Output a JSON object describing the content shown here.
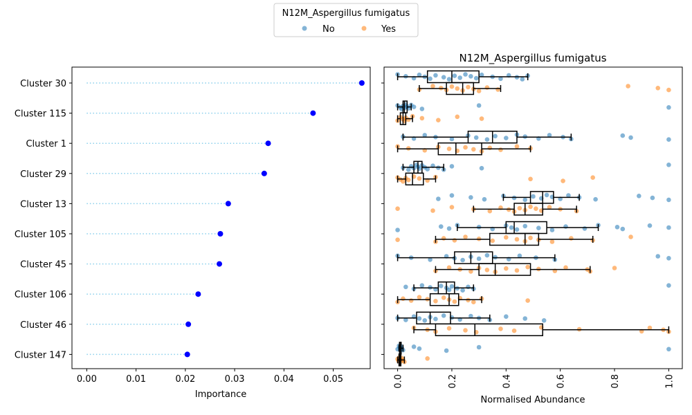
{
  "legend": {
    "title": "N12M_Aspergillus fumigatus",
    "entries": [
      {
        "label": "No",
        "color": "#1f77b4"
      },
      {
        "label": "Yes",
        "color": "#ff7f0e"
      }
    ]
  },
  "chart_data": [
    {
      "type": "lollipop",
      "orientation": "horizontal",
      "xlabel": "Importance",
      "xlim": [
        -0.003,
        0.0575
      ],
      "xticks": [
        "0.00",
        "0.01",
        "0.02",
        "0.03",
        "0.04",
        "0.05"
      ],
      "xtick_values": [
        0,
        0.01,
        0.02,
        0.03,
        0.04,
        0.05
      ],
      "grid": false,
      "marker_color": "#0000ff",
      "stem_color": "#87ceeb",
      "categories": [
        "Cluster 30",
        "Cluster 115",
        "Cluster 1",
        "Cluster 29",
        "Cluster 13",
        "Cluster 105",
        "Cluster 45",
        "Cluster 106",
        "Cluster 46",
        "Cluster 147"
      ],
      "values": [
        0.0558,
        0.0459,
        0.0368,
        0.036,
        0.0287,
        0.0271,
        0.0269,
        0.0226,
        0.0206,
        0.0204
      ]
    },
    {
      "type": "box",
      "orientation": "horizontal",
      "title": "N12M_Aspergillus fumigatus",
      "xlabel": "Normalised Abundance",
      "xlim": [
        -0.05,
        1.05
      ],
      "xticks": [
        "0.0",
        "0.2",
        "0.4",
        "0.6",
        "0.8",
        "1.0"
      ],
      "xtick_values": [
        0,
        0.2,
        0.4,
        0.6,
        0.8,
        1.0
      ],
      "xtick_rotation": 90,
      "grid": false,
      "categories": [
        "Cluster 30",
        "Cluster 115",
        "Cluster 1",
        "Cluster 29",
        "Cluster 13",
        "Cluster 105",
        "Cluster 45",
        "Cluster 106",
        "Cluster 46",
        "Cluster 147"
      ],
      "series": [
        {
          "name": "No",
          "color": "#1f77b4",
          "boxes": [
            [
              0.0,
              0.11,
              0.2,
              0.3,
              0.48
            ],
            [
              0.0,
              0.02,
              0.025,
              0.035,
              0.05
            ],
            [
              0.02,
              0.26,
              0.35,
              0.44,
              0.64
            ],
            [
              0.02,
              0.06,
              0.075,
              0.09,
              0.17
            ],
            [
              0.39,
              0.49,
              0.535,
              0.575,
              0.67
            ],
            [
              0.22,
              0.4,
              0.43,
              0.55,
              0.74
            ],
            [
              0.0,
              0.21,
              0.27,
              0.35,
              0.58
            ],
            [
              0.06,
              0.15,
              0.18,
              0.21,
              0.28
            ],
            [
              0.0,
              0.07,
              0.12,
              0.195,
              0.34
            ],
            [
              0.005,
              0.007,
              0.009,
              0.013,
              0.02
            ]
          ],
          "points": [
            [
              0.0,
              0.03,
              0.06,
              0.08,
              0.1,
              0.12,
              0.14,
              0.17,
              0.19,
              0.21,
              0.23,
              0.25,
              0.27,
              0.29,
              0.31,
              0.35,
              0.38,
              0.41,
              0.44,
              0.46,
              0.48
            ],
            [
              0.0,
              0.01,
              0.015,
              0.02,
              0.025,
              0.03,
              0.035,
              0.04,
              0.05,
              0.06,
              0.09,
              0.3,
              1.0
            ],
            [
              0.02,
              0.06,
              0.1,
              0.14,
              0.2,
              0.26,
              0.29,
              0.33,
              0.36,
              0.4,
              0.44,
              0.47,
              0.52,
              0.56,
              0.61,
              0.64,
              0.83,
              0.86,
              1.0
            ],
            [
              0.02,
              0.04,
              0.05,
              0.06,
              0.07,
              0.075,
              0.08,
              0.09,
              0.1,
              0.11,
              0.13,
              0.15,
              0.17,
              0.2,
              0.31,
              1.0
            ],
            [
              0.15,
              0.2,
              0.27,
              0.32,
              0.39,
              0.43,
              0.47,
              0.5,
              0.53,
              0.55,
              0.57,
              0.6,
              0.63,
              0.67,
              0.73,
              0.89,
              0.94,
              1.0
            ],
            [
              0.0,
              0.16,
              0.19,
              0.22,
              0.3,
              0.35,
              0.4,
              0.42,
              0.44,
              0.47,
              0.52,
              0.57,
              0.62,
              0.69,
              0.74,
              0.81,
              0.83,
              0.93,
              1.0
            ],
            [
              0.0,
              0.05,
              0.12,
              0.18,
              0.21,
              0.24,
              0.27,
              0.3,
              0.33,
              0.36,
              0.41,
              0.45,
              0.51,
              0.58,
              0.96,
              1.0
            ],
            [
              0.03,
              0.06,
              0.09,
              0.12,
              0.14,
              0.16,
              0.18,
              0.19,
              0.2,
              0.22,
              0.24,
              0.26,
              0.28,
              1.0
            ],
            [
              0.0,
              0.03,
              0.06,
              0.08,
              0.1,
              0.12,
              0.14,
              0.17,
              0.2,
              0.23,
              0.27,
              0.3,
              0.34,
              0.4,
              0.47,
              0.54
            ],
            [
              0.0,
              0.005,
              0.008,
              0.01,
              0.013,
              0.016,
              0.02,
              0.06,
              0.08,
              0.18,
              0.3,
              1.0
            ]
          ]
        },
        {
          "name": "Yes",
          "color": "#ff7f0e",
          "boxes": [
            [
              0.08,
              0.18,
              0.24,
              0.28,
              0.38
            ],
            [
              0.0,
              0.01,
              0.02,
              0.03,
              0.055
            ],
            [
              0.0,
              0.15,
              0.215,
              0.31,
              0.49
            ],
            [
              0.0,
              0.03,
              0.055,
              0.095,
              0.14
            ],
            [
              0.28,
              0.43,
              0.47,
              0.535,
              0.66
            ],
            [
              0.14,
              0.34,
              0.47,
              0.52,
              0.72
            ],
            [
              0.14,
              0.3,
              0.36,
              0.49,
              0.71
            ],
            [
              0.0,
              0.12,
              0.19,
              0.225,
              0.31
            ],
            [
              0.06,
              0.14,
              0.285,
              0.535,
              1.0
            ],
            [
              0.0,
              0.005,
              0.008,
              0.012,
              0.025
            ]
          ],
          "points": [
            [
              0.08,
              0.13,
              0.16,
              0.18,
              0.2,
              0.22,
              0.24,
              0.26,
              0.28,
              0.3,
              0.33,
              0.37,
              0.85,
              0.96,
              1.0
            ],
            [
              0.0,
              0.01,
              0.02,
              0.025,
              0.03,
              0.04,
              0.055,
              0.09,
              0.15,
              0.22,
              0.31
            ],
            [
              0.0,
              0.04,
              0.1,
              0.15,
              0.19,
              0.22,
              0.25,
              0.28,
              0.31,
              0.34,
              0.38,
              0.44,
              0.49
            ],
            [
              0.0,
              0.01,
              0.02,
              0.03,
              0.04,
              0.06,
              0.08,
              0.11,
              0.14,
              0.49,
              0.61,
              0.72
            ],
            [
              0.0,
              0.13,
              0.2,
              0.28,
              0.34,
              0.38,
              0.41,
              0.43,
              0.45,
              0.47,
              0.49,
              0.51,
              0.53,
              0.56,
              0.6,
              0.66
            ],
            [
              0.0,
              0.14,
              0.17,
              0.21,
              0.25,
              0.3,
              0.35,
              0.4,
              0.44,
              0.47,
              0.49,
              0.52,
              0.57,
              0.64,
              0.72,
              0.86
            ],
            [
              0.14,
              0.19,
              0.23,
              0.27,
              0.3,
              0.33,
              0.36,
              0.4,
              0.44,
              0.48,
              0.52,
              0.58,
              0.62,
              0.7,
              0.71,
              0.8
            ],
            [
              0.0,
              0.02,
              0.05,
              0.08,
              0.11,
              0.14,
              0.17,
              0.19,
              0.21,
              0.23,
              0.26,
              0.28,
              0.31,
              0.48
            ],
            [
              0.06,
              0.11,
              0.14,
              0.19,
              0.25,
              0.29,
              0.38,
              0.43,
              0.53,
              0.67,
              0.9,
              0.93,
              0.98,
              1.0
            ],
            [
              0.0,
              0.003,
              0.006,
              0.009,
              0.012,
              0.015,
              0.02,
              0.025,
              0.11
            ]
          ]
        }
      ]
    }
  ]
}
